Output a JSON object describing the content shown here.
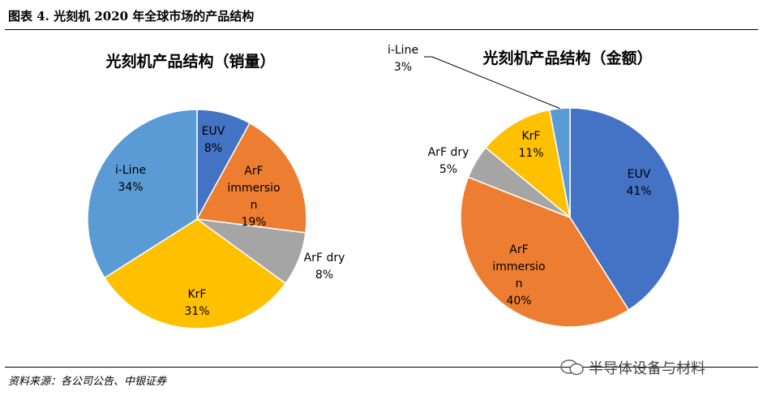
{
  "figure": {
    "title": "图表 4. 光刻机 2020 年全球市场的产品结构",
    "source": "资料来源：各公司公告、中银证券",
    "watermark": "半导体设备与材料"
  },
  "colors": {
    "EUV": "#4472C4",
    "ArF immersion": "#ED7D31",
    "ArF dry": "#A5A5A5",
    "KrF": "#FFC000",
    "i-Line": "#5B9BD5"
  },
  "chart_data": [
    {
      "type": "pie",
      "title": "光刻机产品结构（销量）",
      "categories": [
        "EUV",
        "ArF immersion",
        "ArF dry",
        "KrF",
        "i-Line"
      ],
      "values": [
        8,
        19,
        8,
        31,
        34
      ],
      "labels": [
        {
          "name": "EUV",
          "pct": "8%"
        },
        {
          "name": "ArF immersion",
          "pct": "19%",
          "lines": [
            "ArF",
            "immersio",
            "n"
          ]
        },
        {
          "name": "ArF dry",
          "pct": "8%"
        },
        {
          "name": "KrF",
          "pct": "31%"
        },
        {
          "name": "i-Line",
          "pct": "34%"
        }
      ]
    },
    {
      "type": "pie",
      "title": "光刻机产品结构（金额）",
      "categories": [
        "EUV",
        "ArF immersion",
        "ArF dry",
        "KrF",
        "i-Line"
      ],
      "values": [
        41,
        40,
        5,
        11,
        3
      ],
      "labels": [
        {
          "name": "EUV",
          "pct": "41%"
        },
        {
          "name": "ArF immersion",
          "pct": "40%",
          "lines": [
            "ArF",
            "immersio",
            "n"
          ]
        },
        {
          "name": "ArF dry",
          "pct": "5%"
        },
        {
          "name": "KrF",
          "pct": "11%"
        },
        {
          "name": "i-Line",
          "pct": "3%"
        }
      ]
    }
  ]
}
